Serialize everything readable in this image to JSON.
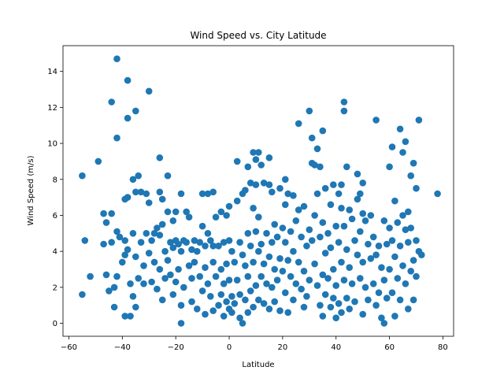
{
  "chart_data": {
    "type": "scatter",
    "title": "Wind Speed vs. City Latitude",
    "xlabel": "Latitude",
    "ylabel": "Wind Speed (m/s)",
    "xlim": [
      -62.2,
      84.0
    ],
    "ylim": [
      -0.72,
      15.43
    ],
    "xticks": [
      "−60",
      "−40",
      "−20",
      "0",
      "20",
      "40",
      "60",
      "80"
    ],
    "xtick_values": [
      -60,
      -40,
      -20,
      0,
      20,
      40,
      60,
      80
    ],
    "yticks": [
      "0",
      "2",
      "4",
      "6",
      "8",
      "10",
      "12",
      "14"
    ],
    "ytick_values": [
      0,
      2,
      4,
      6,
      8,
      10,
      12,
      14
    ],
    "grid": false,
    "marker_color": "#1f77b4",
    "points": [
      [
        -55,
        8.2
      ],
      [
        -55,
        1.6
      ],
      [
        -54,
        4.6
      ],
      [
        -52,
        2.6
      ],
      [
        -49,
        9.0
      ],
      [
        -47,
        6.1
      ],
      [
        -47,
        4.4
      ],
      [
        -46,
        5.6
      ],
      [
        -46,
        2.7
      ],
      [
        -45,
        1.8
      ],
      [
        -44,
        12.3
      ],
      [
        -44,
        6.1
      ],
      [
        -44,
        4.5
      ],
      [
        -43,
        0.9
      ],
      [
        -43,
        2.0
      ],
      [
        -42,
        14.7
      ],
      [
        -42,
        10.3
      ],
      [
        -42,
        5.1
      ],
      [
        -42,
        2.6
      ],
      [
        -41,
        4.8
      ],
      [
        -40,
        3.4
      ],
      [
        -39,
        6.9
      ],
      [
        -39,
        4.6
      ],
      [
        -39,
        3.8
      ],
      [
        -39,
        0.4
      ],
      [
        -38,
        13.5
      ],
      [
        -38,
        11.4
      ],
      [
        -38,
        7.0
      ],
      [
        -38,
        4.1
      ],
      [
        -37,
        2.2
      ],
      [
        -37,
        0.4
      ],
      [
        -36,
        8.0
      ],
      [
        -36,
        5.0
      ],
      [
        -36,
        1.5
      ],
      [
        -35,
        11.8
      ],
      [
        -35,
        7.3
      ],
      [
        -35,
        3.7
      ],
      [
        -35,
        0.9
      ],
      [
        -34,
        8.2
      ],
      [
        -34,
        2.5
      ],
      [
        -33,
        7.3
      ],
      [
        -33,
        4.5
      ],
      [
        -32,
        3.2
      ],
      [
        -32,
        2.2
      ],
      [
        -31,
        7.2
      ],
      [
        -31,
        5.0
      ],
      [
        -30,
        12.9
      ],
      [
        -30,
        6.7
      ],
      [
        -30,
        3.9
      ],
      [
        -29,
        4.6
      ],
      [
        -29,
        2.3
      ],
      [
        -28,
        5.0
      ],
      [
        -28,
        3.4
      ],
      [
        -27,
        5.3
      ],
      [
        -27,
        1.9
      ],
      [
        -26,
        9.2
      ],
      [
        -26,
        7.3
      ],
      [
        -26,
        4.9
      ],
      [
        -26,
        3.0
      ],
      [
        -25,
        6.9
      ],
      [
        -25,
        5.5
      ],
      [
        -25,
        1.3
      ],
      [
        -24,
        4.0
      ],
      [
        -24,
        2.5
      ],
      [
        -23,
        8.2
      ],
      [
        -23,
        6.2
      ],
      [
        -23,
        3.5
      ],
      [
        -22,
        4.5
      ],
      [
        -22,
        2.7
      ],
      [
        -21,
        5.7
      ],
      [
        -21,
        4.2
      ],
      [
        -21,
        1.6
      ],
      [
        -20,
        6.2
      ],
      [
        -20,
        4.6
      ],
      [
        -20,
        2.3
      ],
      [
        -19,
        4.4
      ],
      [
        -19,
        3.0
      ],
      [
        -18,
        7.2
      ],
      [
        -18,
        4.0
      ],
      [
        -18,
        0.0
      ],
      [
        -18,
        1.0
      ],
      [
        -17,
        4.6
      ],
      [
        -17,
        2.0
      ],
      [
        -16,
        6.2
      ],
      [
        -16,
        4.5
      ],
      [
        -15,
        5.9
      ],
      [
        -15,
        3.2
      ],
      [
        -14,
        4.1
      ],
      [
        -14,
        2.5
      ],
      [
        -14,
        1.2
      ],
      [
        -13,
        4.6
      ],
      [
        -13,
        3.4
      ],
      [
        -12,
        4.0
      ],
      [
        -12,
        0.8
      ],
      [
        -11,
        4.5
      ],
      [
        -11,
        2.6
      ],
      [
        -10,
        7.2
      ],
      [
        -10,
        5.4
      ],
      [
        -10,
        1.8
      ],
      [
        -9,
        4.3
      ],
      [
        -9,
        3.1
      ],
      [
        -9,
        0.5
      ],
      [
        -8,
        7.2
      ],
      [
        -8,
        5.0
      ],
      [
        -8,
        2.2
      ],
      [
        -7,
        4.6
      ],
      [
        -7,
        1.5
      ],
      [
        -6,
        7.3
      ],
      [
        -6,
        4.3
      ],
      [
        -6,
        3.4
      ],
      [
        -6,
        0.7
      ],
      [
        -5,
        5.9
      ],
      [
        -5,
        2.6
      ],
      [
        -4,
        4.3
      ],
      [
        -4,
        1.0
      ],
      [
        -3,
        6.2
      ],
      [
        -3,
        3.0
      ],
      [
        -3,
        1.6
      ],
      [
        -2,
        4.5
      ],
      [
        -2,
        2.2
      ],
      [
        -2,
        0.4
      ],
      [
        -1,
        6.0
      ],
      [
        -1,
        3.3
      ],
      [
        -1,
        1.2
      ],
      [
        0,
        6.5
      ],
      [
        0,
        4.6
      ],
      [
        0,
        2.4
      ],
      [
        0,
        0.8
      ],
      [
        1,
        4.0
      ],
      [
        1,
        1.5
      ],
      [
        1,
        0.6
      ],
      [
        2,
        3.4
      ],
      [
        2,
        1.1
      ],
      [
        3,
        9.0
      ],
      [
        3,
        6.8
      ],
      [
        3,
        2.4
      ],
      [
        4,
        4.5
      ],
      [
        4,
        1.6
      ],
      [
        4,
        0.3
      ],
      [
        5,
        7.2
      ],
      [
        5,
        3.8
      ],
      [
        5,
        0.0
      ],
      [
        6,
        7.4
      ],
      [
        6,
        3.2
      ],
      [
        6,
        1.3
      ],
      [
        7,
        8.7
      ],
      [
        7,
        5.0
      ],
      [
        7,
        2.6
      ],
      [
        7,
        0.6
      ],
      [
        8,
        7.8
      ],
      [
        8,
        4.3
      ],
      [
        8,
        1.8
      ],
      [
        9,
        9.5
      ],
      [
        9,
        6.4
      ],
      [
        9,
        3.4
      ],
      [
        9,
        0.9
      ],
      [
        10,
        9.1
      ],
      [
        10,
        7.7
      ],
      [
        10,
        5.1
      ],
      [
        10,
        2.1
      ],
      [
        11,
        9.5
      ],
      [
        11,
        5.9
      ],
      [
        11,
        4.0
      ],
      [
        11,
        1.3
      ],
      [
        12,
        8.8
      ],
      [
        12,
        4.4
      ],
      [
        12,
        2.6
      ],
      [
        13,
        7.8
      ],
      [
        13,
        3.3
      ],
      [
        13,
        1.1
      ],
      [
        14,
        5.0
      ],
      [
        14,
        2.2
      ],
      [
        15,
        9.2
      ],
      [
        15,
        7.7
      ],
      [
        15,
        3.7
      ],
      [
        15,
        0.8
      ],
      [
        16,
        7.3
      ],
      [
        16,
        4.5
      ],
      [
        16,
        2.0
      ],
      [
        17,
        5.5
      ],
      [
        17,
        3.0
      ],
      [
        17,
        1.2
      ],
      [
        18,
        4.8
      ],
      [
        18,
        2.4
      ],
      [
        19,
        7.5
      ],
      [
        19,
        3.6
      ],
      [
        19,
        0.7
      ],
      [
        20,
        5.3
      ],
      [
        20,
        2.9
      ],
      [
        21,
        8.0
      ],
      [
        21,
        6.6
      ],
      [
        21,
        4.5
      ],
      [
        21,
        1.7
      ],
      [
        22,
        7.2
      ],
      [
        22,
        3.5
      ],
      [
        22,
        0.6
      ],
      [
        23,
        5.1
      ],
      [
        23,
        2.6
      ],
      [
        24,
        7.1
      ],
      [
        24,
        4.0
      ],
      [
        24,
        1.3
      ],
      [
        25,
        5.7
      ],
      [
        25,
        2.2
      ],
      [
        26,
        11.1
      ],
      [
        26,
        6.3
      ],
      [
        26,
        3.4
      ],
      [
        27,
        4.8
      ],
      [
        27,
        1.9
      ],
      [
        28,
        6.5
      ],
      [
        28,
        2.9
      ],
      [
        28,
        0.9
      ],
      [
        29,
        4.3
      ],
      [
        29,
        1.5
      ],
      [
        30,
        11.8
      ],
      [
        30,
        5.2
      ],
      [
        30,
        2.4
      ],
      [
        31,
        10.3
      ],
      [
        31,
        8.9
      ],
      [
        31,
        4.6
      ],
      [
        32,
        8.8
      ],
      [
        32,
        6.0
      ],
      [
        32,
        3.3
      ],
      [
        33,
        9.7
      ],
      [
        33,
        7.2
      ],
      [
        33,
        2.1
      ],
      [
        34,
        8.7
      ],
      [
        34,
        4.8
      ],
      [
        34,
        1.0
      ],
      [
        35,
        10.7
      ],
      [
        35,
        5.6
      ],
      [
        35,
        2.7
      ],
      [
        35,
        0.4
      ],
      [
        36,
        7.5
      ],
      [
        36,
        3.9
      ],
      [
        36,
        1.6
      ],
      [
        37,
        5.0
      ],
      [
        37,
        2.5
      ],
      [
        38,
        6.6
      ],
      [
        38,
        4.2
      ],
      [
        38,
        0.9
      ],
      [
        39,
        7.7
      ],
      [
        39,
        3.0
      ],
      [
        39,
        1.4
      ],
      [
        40,
        5.4
      ],
      [
        40,
        2.1
      ],
      [
        40,
        0.3
      ],
      [
        41,
        7.2
      ],
      [
        41,
        4.5
      ],
      [
        41,
        1.1
      ],
      [
        42,
        7.7
      ],
      [
        42,
        6.4
      ],
      [
        42,
        3.4
      ],
      [
        42,
        0.6
      ],
      [
        43,
        12.3
      ],
      [
        43,
        11.8
      ],
      [
        43,
        5.4
      ],
      [
        43,
        2.4
      ],
      [
        44,
        8.7
      ],
      [
        44,
        4.1
      ],
      [
        44,
        1.4
      ],
      [
        45,
        6.3
      ],
      [
        45,
        3.1
      ],
      [
        45,
        0.8
      ],
      [
        46,
        5.8
      ],
      [
        46,
        2.2
      ],
      [
        47,
        4.6
      ],
      [
        47,
        1.2
      ],
      [
        48,
        8.3
      ],
      [
        48,
        6.9
      ],
      [
        48,
        3.8
      ],
      [
        49,
        7.2
      ],
      [
        49,
        5.1
      ],
      [
        49,
        2.5
      ],
      [
        50,
        7.8
      ],
      [
        50,
        6.1
      ],
      [
        50,
        3.4
      ],
      [
        50,
        0.5
      ],
      [
        51,
        5.7
      ],
      [
        51,
        2.0
      ],
      [
        52,
        4.4
      ],
      [
        52,
        1.3
      ],
      [
        53,
        6.0
      ],
      [
        53,
        3.6
      ],
      [
        54,
        4.8
      ],
      [
        54,
        2.2
      ],
      [
        55,
        11.3
      ],
      [
        55,
        3.8
      ],
      [
        55,
        1.0
      ],
      [
        56,
        4.3
      ],
      [
        56,
        1.7
      ],
      [
        57,
        3.1
      ],
      [
        57,
        0.3
      ],
      [
        58,
        5.7
      ],
      [
        58,
        2.4
      ],
      [
        58,
        0.0
      ],
      [
        59,
        4.4
      ],
      [
        59,
        1.4
      ],
      [
        60,
        8.7
      ],
      [
        60,
        5.3
      ],
      [
        60,
        3.0
      ],
      [
        61,
        9.8
      ],
      [
        61,
        4.6
      ],
      [
        61,
        1.7
      ],
      [
        62,
        6.8
      ],
      [
        62,
        3.7
      ],
      [
        62,
        0.4
      ],
      [
        63,
        5.6
      ],
      [
        63,
        2.5
      ],
      [
        64,
        10.8
      ],
      [
        64,
        4.3
      ],
      [
        64,
        1.3
      ],
      [
        65,
        9.5
      ],
      [
        65,
        6.0
      ],
      [
        65,
        3.2
      ],
      [
        66,
        10.1
      ],
      [
        66,
        5.2
      ],
      [
        66,
        2.2
      ],
      [
        67,
        6.2
      ],
      [
        67,
        4.5
      ],
      [
        67,
        0.8
      ],
      [
        68,
        8.2
      ],
      [
        68,
        5.3
      ],
      [
        68,
        2.9
      ],
      [
        69,
        8.9
      ],
      [
        69,
        3.5
      ],
      [
        69,
        1.3
      ],
      [
        70,
        7.5
      ],
      [
        70,
        4.6
      ],
      [
        70,
        2.6
      ],
      [
        71,
        11.3
      ],
      [
        71,
        4.0
      ],
      [
        72,
        3.8
      ],
      [
        78,
        7.2
      ]
    ]
  }
}
